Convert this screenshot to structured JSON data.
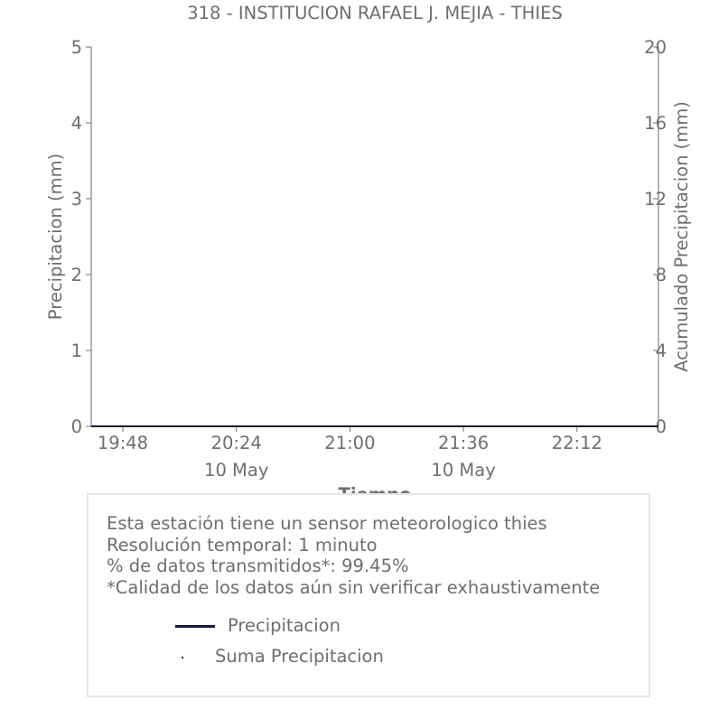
{
  "chart_data": {
    "type": "line",
    "title": "318 - INSTITUCION RAFAEL J. MEJIA - THIES",
    "xlabel": "Tiempo",
    "ylabel": "Precipitacion (mm)",
    "y2label": "Acumulado Precipitacion (mm)",
    "x_ticks": [
      {
        "label": "19:48",
        "sublabel": ""
      },
      {
        "label": "20:24",
        "sublabel": "10 May"
      },
      {
        "label": "21:00",
        "sublabel": ""
      },
      {
        "label": "21:36",
        "sublabel": "10 May"
      },
      {
        "label": "22:12",
        "sublabel": ""
      }
    ],
    "y_ticks": [
      0,
      1,
      2,
      3,
      4,
      5
    ],
    "y2_ticks": [
      0,
      4,
      8,
      12,
      16,
      20
    ],
    "ylim": [
      0,
      5
    ],
    "y2lim": [
      0,
      20
    ],
    "grid": false,
    "series": [
      {
        "name": "Precipitacion",
        "axis": "left",
        "color": "#1c1f3b",
        "values": [
          0,
          0
        ]
      },
      {
        "name": "Suma Precipitacion",
        "axis": "right",
        "color": "#1c1f3b",
        "values": [
          0,
          0
        ]
      }
    ]
  },
  "info": {
    "lines": [
      "Esta estación tiene un sensor meteorologico thies",
      "Resolución temporal: 1 minuto",
      "% de datos transmitidos*: 99.45%",
      "*Calidad de los datos aún sin verificar exhaustivamente"
    ]
  },
  "legend": {
    "items": [
      {
        "label": "Precipitacion"
      },
      {
        "label": "Suma Precipitacion"
      }
    ]
  }
}
